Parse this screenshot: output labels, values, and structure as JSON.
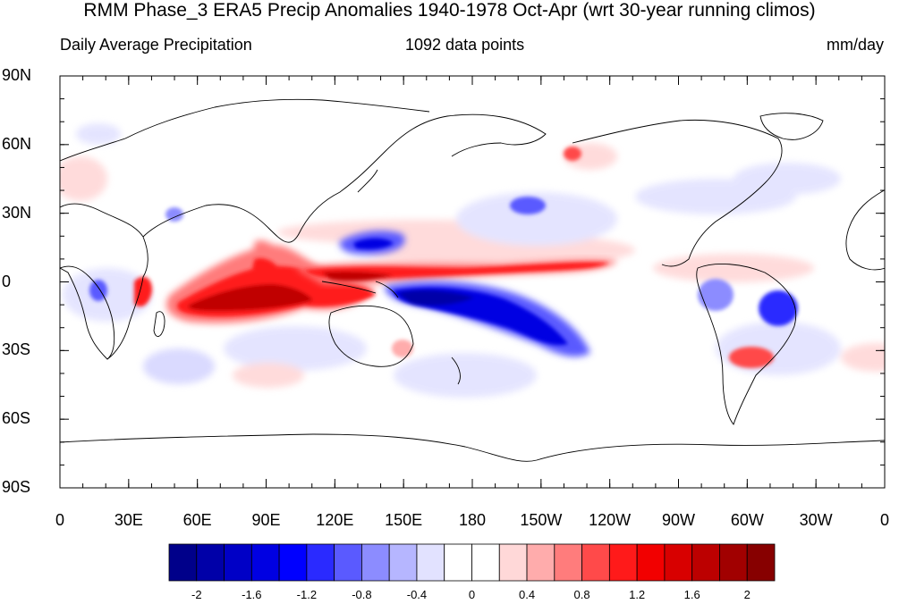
{
  "title": "RMM Phase_3 ERA5 Precip Anomalies 1940-1978 Oct-Apr (wrt 30-year running climos)",
  "subtitle_left": "Daily Average Precipitation",
  "subtitle_center": "1092 data points",
  "subtitle_right": "mm/day",
  "lat_labels": [
    "90N",
    "60N",
    "30N",
    "0",
    "30S",
    "60S",
    "90S"
  ],
  "lon_labels": [
    "0",
    "30E",
    "60E",
    "90E",
    "120E",
    "150E",
    "180",
    "150W",
    "120W",
    "90W",
    "60W",
    "30W",
    "0"
  ],
  "colorbar": {
    "colors": [
      "#00008a",
      "#0000a8",
      "#0000c6",
      "#0000e2",
      "#0000ff",
      "#2a2aff",
      "#5a5aff",
      "#8c8cff",
      "#b6b6ff",
      "#e2e2ff",
      "#ffffff",
      "#ffffff",
      "#ffd8d8",
      "#ffacac",
      "#ff7c7c",
      "#ff4a4a",
      "#ff1a1a",
      "#f20000",
      "#d80000",
      "#bc0000",
      "#a10000",
      "#870000"
    ],
    "labels": [
      "-2",
      "-1.6",
      "-1.2",
      "-0.8",
      "-0.4",
      "0",
      "0.4",
      "0.8",
      "1.2",
      "1.6",
      "2"
    ]
  }
}
